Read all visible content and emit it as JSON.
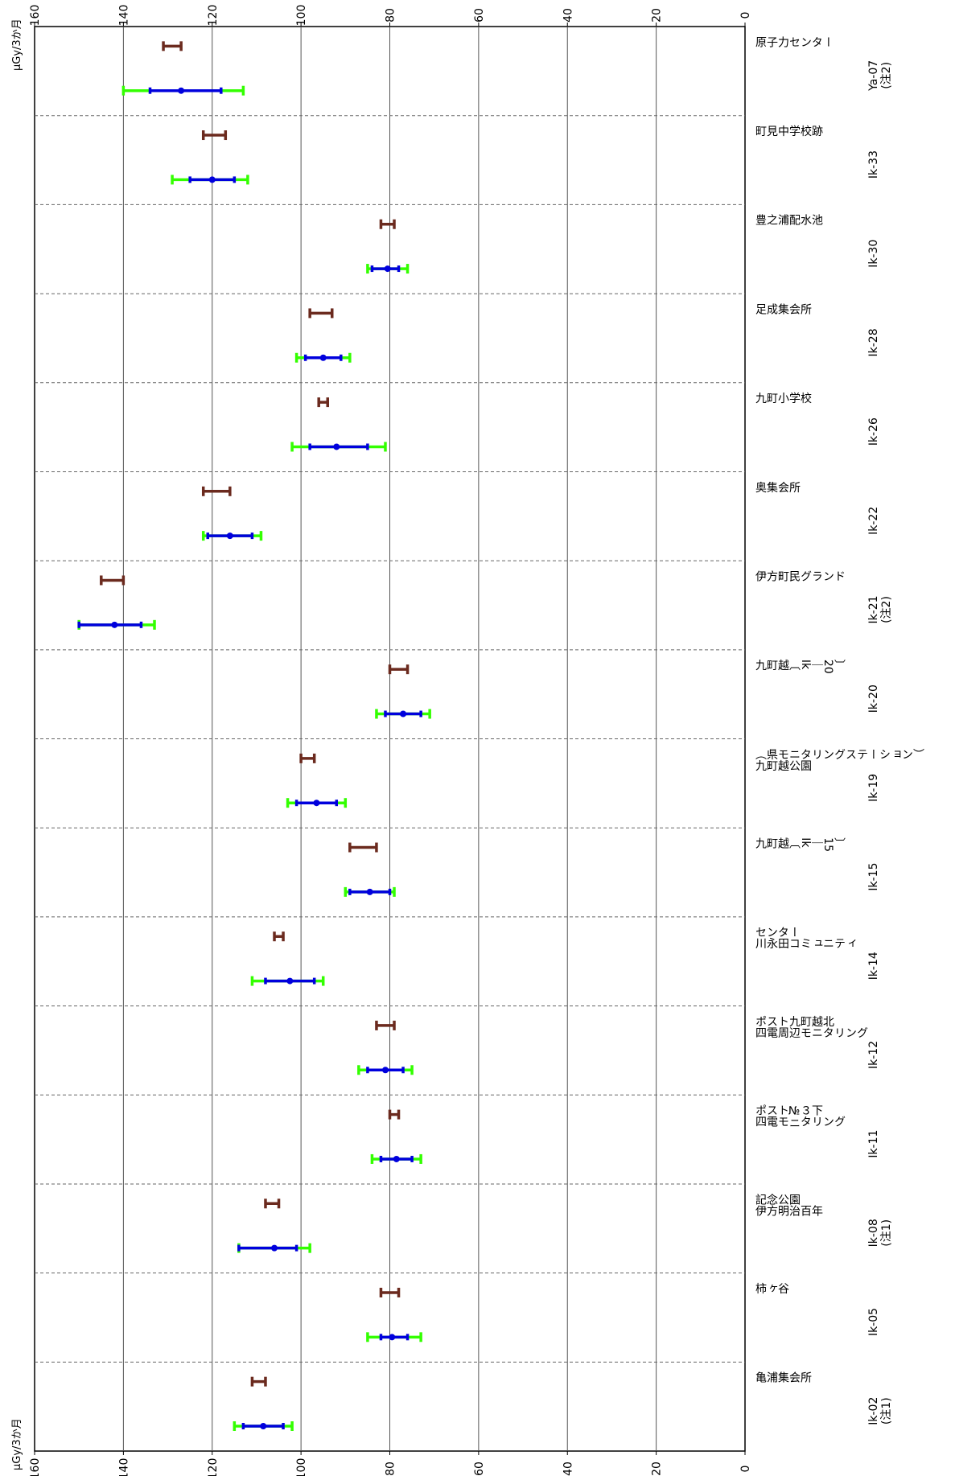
{
  "chart_data": {
    "type": "errorbar",
    "orientation": "rotated-90",
    "unit_label": "μGy/3か月",
    "xlim": [
      0,
      160
    ],
    "ticks": [
      0,
      20,
      40,
      60,
      80,
      100,
      120,
      140,
      160
    ],
    "grid": true,
    "series_colors": {
      "reference": "#6b2a1e",
      "range_outer": "#33ff00",
      "range_inner": "#0000dd",
      "mean": "#0000dd"
    },
    "stations": [
      {
        "name_lines": [
          "亀",
          "浦",
          "集",
          "会",
          "所"
        ],
        "code": "Ik-02",
        "note": "(注1)",
        "ref": [
          108,
          111
        ],
        "outer": [
          102,
          115
        ],
        "inner": [
          104,
          113
        ],
        "mean": 108.5
      },
      {
        "name_lines": [
          "柿",
          "ヶ",
          "谷"
        ],
        "code": "Ik-05",
        "note": "",
        "ref": [
          78,
          82
        ],
        "outer": [
          73,
          85
        ],
        "inner": [
          76,
          82
        ],
        "mean": 79.5
      },
      {
        "name_lines": [
          "記伊",
          "念方",
          "公明",
          "園治",
          "　百",
          "　年"
        ],
        "code": "Ik-08",
        "note": "(注1)",
        "ref": [
          105,
          108
        ],
        "outer": [
          98,
          114
        ],
        "inner": [
          101,
          114
        ],
        "mean": 106
      },
      {
        "name_lines": [
          "ポ四",
          "ス電",
          "トモ",
          "№ニ",
          "３タ",
          "下リ",
          "　ン",
          "　グ"
        ],
        "code": "Ik-11",
        "note": "",
        "ref": [
          78,
          80
        ],
        "outer": [
          73,
          84
        ],
        "inner": [
          75,
          82
        ],
        "mean": 78.5
      },
      {
        "name_lines": [
          "ポ四",
          "ス電",
          "ト周",
          "九辺",
          "町モ",
          "越ニ",
          "北タ",
          "　リ",
          "　ン",
          "　グ"
        ],
        "code": "Ik-12",
        "note": "",
        "ref": [
          79,
          83
        ],
        "outer": [
          75,
          87
        ],
        "inner": [
          77,
          85
        ],
        "mean": 81
      },
      {
        "name_lines": [
          "セ川",
          "ン永",
          "タ田",
          "ーコ",
          "　ミ",
          "　ュ",
          "　ニ",
          "　テ",
          "　ィ"
        ],
        "code": "Ik-14",
        "note": "",
        "ref": [
          104,
          106
        ],
        "outer": [
          95,
          111
        ],
        "inner": [
          97,
          108
        ],
        "mean": 102.5
      },
      {
        "name_lines": [
          "九",
          "町",
          "越",
          "〔",
          "Ik",
          "｜",
          "15",
          "〕"
        ],
        "code": "Ik-15",
        "note": "",
        "ref": [
          83,
          89
        ],
        "outer": [
          79,
          90
        ],
        "inner": [
          80,
          89
        ],
        "mean": 84.5
      },
      {
        "name_lines": [
          "（九",
          "県町",
          "モ越",
          "ニ公",
          "タ園",
          "リ",
          "ン",
          "グ",
          "ス",
          "テ",
          "ー",
          "シ",
          "ョ",
          "ン",
          "）"
        ],
        "code": "Ik-19",
        "note": "",
        "ref": [
          97,
          100
        ],
        "outer": [
          90,
          103
        ],
        "inner": [
          92,
          101
        ],
        "mean": 96.5
      },
      {
        "name_lines": [
          "九",
          "町",
          "越",
          "〔",
          "Ik",
          "｜",
          "20",
          "〕"
        ],
        "code": "Ik-20",
        "note": "",
        "ref": [
          76,
          80
        ],
        "outer": [
          71,
          83
        ],
        "inner": [
          73,
          81
        ],
        "mean": 77
      },
      {
        "name_lines": [
          "伊",
          "方",
          "町",
          "民",
          "グ",
          "ラ",
          "ン",
          "ド"
        ],
        "code": "Ik-21",
        "note": "(注2)",
        "ref": [
          140,
          145
        ],
        "outer": [
          133,
          150
        ],
        "inner": [
          136,
          150
        ],
        "mean": 142
      },
      {
        "name_lines": [
          "奥",
          "集",
          "会",
          "所"
        ],
        "code": "Ik-22",
        "note": "",
        "ref": [
          116,
          122
        ],
        "outer": [
          109,
          122
        ],
        "inner": [
          111,
          121
        ],
        "mean": 116
      },
      {
        "name_lines": [
          "九",
          "町",
          "小",
          "学",
          "校"
        ],
        "code": "Ik-26",
        "note": "",
        "ref": [
          94,
          96
        ],
        "outer": [
          81,
          102
        ],
        "inner": [
          85,
          98
        ],
        "mean": 92
      },
      {
        "name_lines": [
          "足",
          "成",
          "集",
          "会",
          "所"
        ],
        "code": "Ik-28",
        "note": "",
        "ref": [
          93,
          98
        ],
        "outer": [
          89,
          101
        ],
        "inner": [
          91,
          99
        ],
        "mean": 95
      },
      {
        "name_lines": [
          "豊",
          "之",
          "浦",
          "配",
          "水",
          "池"
        ],
        "code": "Ik-30",
        "note": "",
        "ref": [
          79,
          82
        ],
        "outer": [
          76,
          85
        ],
        "inner": [
          78,
          84
        ],
        "mean": 80.5
      },
      {
        "name_lines": [
          "町",
          "見",
          "中",
          "学",
          "校",
          "跡"
        ],
        "code": "Ik-33",
        "note": "",
        "ref": [
          117,
          122
        ],
        "outer": [
          112,
          129
        ],
        "inner": [
          115,
          125
        ],
        "mean": 120
      },
      {
        "name_lines": [
          "原",
          "子",
          "力",
          "セ",
          "ン",
          "タ",
          "ー"
        ],
        "code": "Ya-07",
        "note": "(注2)",
        "ref": [
          127,
          131
        ],
        "outer": [
          113,
          140
        ],
        "inner": [
          118,
          134
        ],
        "mean": 127
      }
    ]
  }
}
